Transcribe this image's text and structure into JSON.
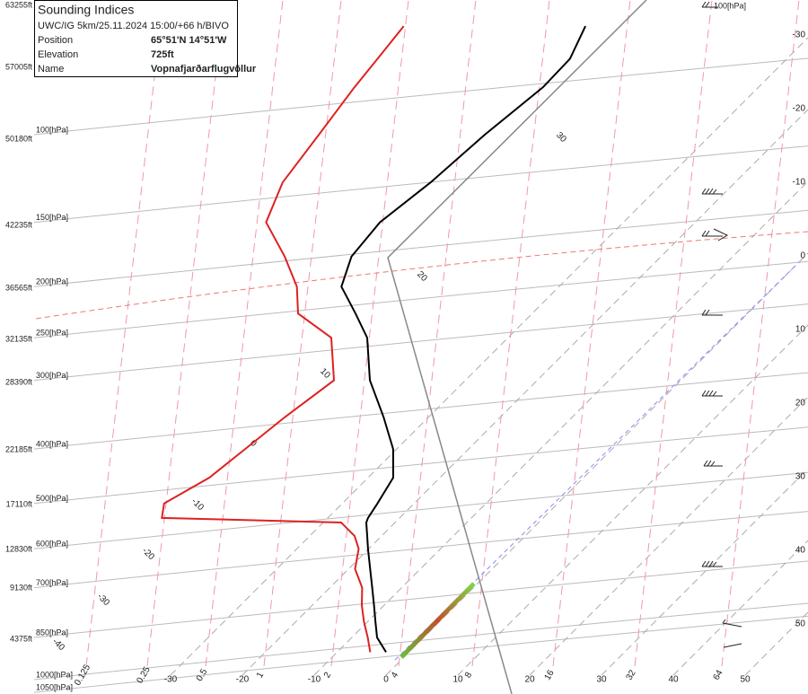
{
  "info": {
    "title": "Sounding Indices",
    "run": "UWC/IG 5km/25.11.2024 15:00/+66 h/BIVO",
    "rows": [
      [
        "Position",
        "65°51'N 14°51'W"
      ],
      [
        "Elevation",
        "725ft"
      ],
      [
        "Name",
        "Vopnafjarðarflugvöllur"
      ]
    ]
  },
  "chart_data": {
    "type": "skewt",
    "pressure": [
      900,
      850,
      800,
      750,
      700,
      650,
      600,
      570,
      540,
      530,
      500,
      450,
      400,
      350,
      300,
      250,
      225,
      200,
      175,
      150,
      125,
      100,
      80,
      70,
      60
    ],
    "series": [
      {
        "color": "#000000",
        "values": [
          -3.2,
          -6.5,
          -8.9,
          -11.4,
          -14.1,
          -17,
          -20.1,
          -22,
          -24,
          -24.4,
          -25.1,
          -26.5,
          -30.5,
          -36.3,
          -43.3,
          -49.6,
          -54.6,
          -60.3,
          -63.1,
          -63.9,
          -62.4,
          -61.5,
          -60,
          -60.2,
          -62.6
        ]
      },
      {
        "color": "#dd2222",
        "values": [
          -5.4,
          -7.8,
          -10.5,
          -13.1,
          -15.5,
          -19.1,
          -21.4,
          -23.75,
          -27.5,
          -53.1,
          -54.8,
          -52.1,
          -51.1,
          -50,
          -48.3,
          -54.6,
          -62.6,
          -66.5,
          -72.4,
          -79.75,
          -83,
          -84.6,
          -86.25,
          -87,
          -87.9
        ]
      }
    ],
    "yticks": [
      {
        "value": 1050,
        "label": "1050[hPa]"
      },
      {
        "value": 1000,
        "label": "1000[hPa]"
      },
      {
        "value": 850,
        "label": "850[hPa]"
      },
      {
        "value": 700,
        "label": "700[hPa]"
      },
      {
        "value": 600,
        "label": "600[hPa]"
      },
      {
        "value": 500,
        "label": "500[hPa]"
      },
      {
        "value": 400,
        "label": "400[hPa]"
      },
      {
        "value": 300,
        "label": "300[hPa]"
      },
      {
        "value": 250,
        "label": "250[hPa]"
      },
      {
        "value": 200,
        "label": "200[hPa]"
      },
      {
        "value": 150,
        "label": "150[hPa]"
      },
      {
        "value": 100,
        "label": "100[hPa]"
      }
    ],
    "xticks": [
      -30,
      -20,
      -10,
      0,
      10,
      20,
      30,
      40,
      50
    ],
    "altitude_labels": [
      "63255ft",
      "57005ft",
      "50180ft",
      "42235ft",
      "36565ft",
      "32135ft",
      "28390ft",
      "22185ft",
      "17110ft",
      "12830ft",
      "9130ft",
      "4375ft"
    ],
    "mixing_ratio_labels": [
      0.125,
      0.25,
      0.5,
      1,
      2,
      4,
      8,
      16,
      32,
      64
    ],
    "adiabat_labels": [
      30,
      20,
      10,
      0,
      -10,
      -20,
      -30,
      -40
    ]
  }
}
